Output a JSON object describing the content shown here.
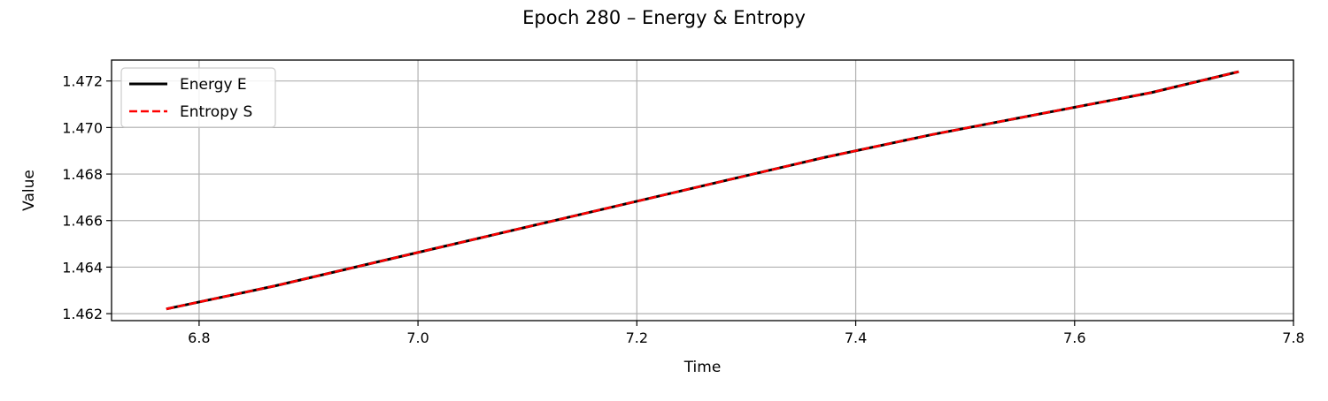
{
  "chart_data": {
    "type": "line",
    "title": "Epoch 280 – Energy & Entropy",
    "xlabel": "Time",
    "ylabel": "Value",
    "xlim": [
      6.72,
      7.8
    ],
    "ylim": [
      1.4617,
      1.4729
    ],
    "xticks": [
      6.8,
      7.0,
      7.2,
      7.4,
      7.6,
      7.8
    ],
    "xtick_labels": [
      "6.8",
      "7.0",
      "7.2",
      "7.4",
      "7.6",
      "7.8"
    ],
    "yticks": [
      1.462,
      1.464,
      1.466,
      1.468,
      1.47,
      1.472
    ],
    "ytick_labels": [
      "1.462",
      "1.464",
      "1.466",
      "1.468",
      "1.470",
      "1.472"
    ],
    "grid": true,
    "legend": "top-left",
    "series": [
      {
        "name": "Energy E",
        "color": "#000000",
        "style": "solid",
        "x": [
          6.77,
          6.87,
          6.97,
          7.07,
          7.17,
          7.27,
          7.37,
          7.47,
          7.57,
          7.67,
          7.75
        ],
        "y": [
          1.4622,
          1.4632,
          1.4643,
          1.4654,
          1.4665,
          1.4676,
          1.4687,
          1.4697,
          1.4706,
          1.4715,
          1.4724
        ]
      },
      {
        "name": "Entropy S",
        "color": "#ff0000",
        "style": "dashed",
        "x": [
          6.77,
          6.87,
          6.97,
          7.07,
          7.17,
          7.27,
          7.37,
          7.47,
          7.57,
          7.67,
          7.75
        ],
        "y": [
          1.4622,
          1.4632,
          1.4643,
          1.4654,
          1.4665,
          1.4676,
          1.4687,
          1.4697,
          1.4706,
          1.4715,
          1.4724
        ]
      }
    ]
  }
}
